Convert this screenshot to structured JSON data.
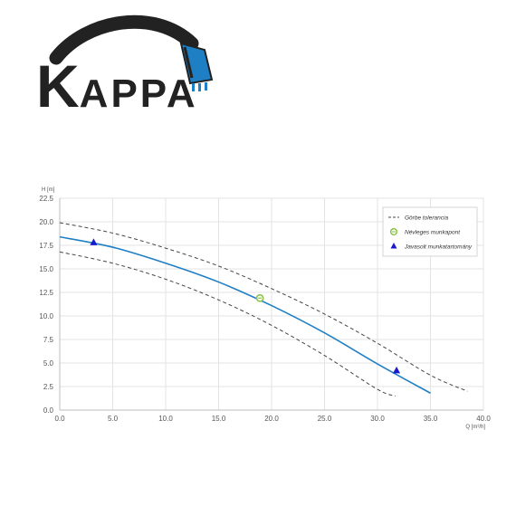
{
  "logo": {
    "text_first": "K",
    "text_rest": "APPA",
    "accent_color": "#1f7fc4",
    "dark_color": "#222222",
    "icon": "excavator-bucket-icon"
  },
  "chart_data": {
    "type": "line",
    "xlabel": "Q [m³/h]",
    "ylabel": "H [m]",
    "xlim": [
      0,
      40
    ],
    "ylim": [
      0,
      22.5
    ],
    "xticks": [
      "0.0",
      "5.0",
      "10.0",
      "15.0",
      "20.0",
      "25.0",
      "30.0",
      "35.0",
      "40.0"
    ],
    "yticks": [
      "0.0",
      "2.5",
      "5.0",
      "7.5",
      "10.0",
      "12.5",
      "15.0",
      "17.5",
      "20.0",
      "22.5"
    ],
    "grid": true,
    "legend_position": "top-right",
    "series": [
      {
        "name": "Görbe tolerancia",
        "style": "dashed",
        "color": "#444444",
        "x": [
          0,
          5,
          10,
          15,
          20,
          25,
          30,
          35,
          38.5
        ],
        "y": [
          19.9,
          18.8,
          17.2,
          15.3,
          12.9,
          10.2,
          7.1,
          3.7,
          2.0
        ]
      },
      {
        "name": "",
        "style": "dashed",
        "color": "#444444",
        "x": [
          0,
          5,
          10,
          15,
          20,
          25,
          30,
          31.7
        ],
        "y": [
          16.8,
          15.6,
          13.9,
          11.7,
          9.0,
          5.8,
          2.2,
          1.5
        ]
      },
      {
        "name": "",
        "style": "solid",
        "color": "#1f7fc4",
        "x": [
          0,
          5,
          10,
          15,
          20,
          25,
          30,
          35
        ],
        "y": [
          18.4,
          17.3,
          15.6,
          13.6,
          11.1,
          8.2,
          4.9,
          1.8
        ]
      },
      {
        "name": "Névleges munkapont",
        "marker": "circle",
        "color": "#8bc34a",
        "x": [
          18.9
        ],
        "y": [
          11.9
        ]
      },
      {
        "name": "Javasolt munkatartomány",
        "marker": "triangle",
        "color": "#1a1acc",
        "x": [
          3.2,
          31.8
        ],
        "y": [
          17.8,
          4.2
        ]
      }
    ]
  }
}
